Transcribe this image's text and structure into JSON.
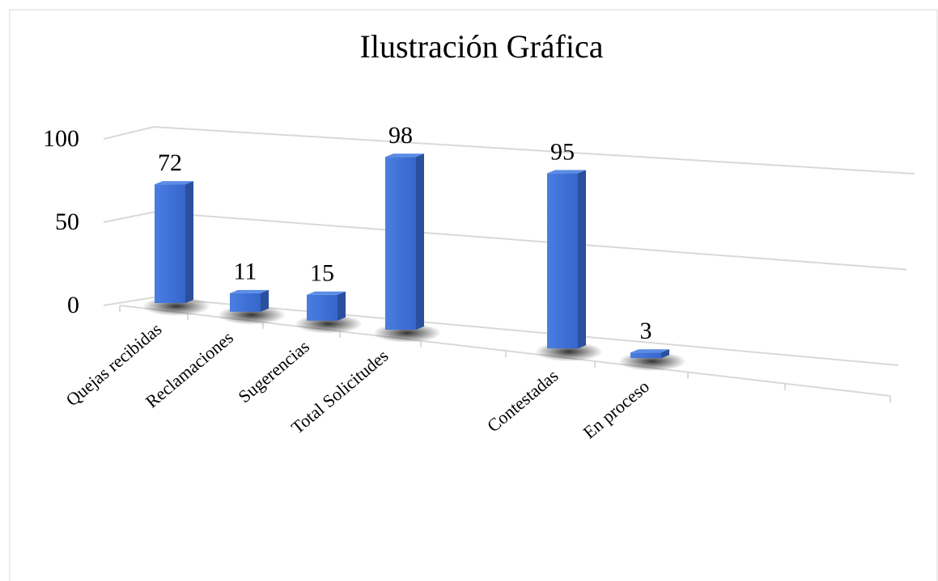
{
  "chart_data": {
    "type": "bar3d",
    "title": "Ilustración Gráfica",
    "categories": [
      "Quejas recibidas",
      "Reclamaciones",
      "Sugerencias",
      "Total Solicitudes",
      null,
      "Contestadas",
      "En proceso",
      null,
      null
    ],
    "values": [
      72,
      11,
      15,
      98,
      null,
      95,
      3,
      null,
      null
    ],
    "color": "#3a6fd8",
    "ylim": [
      0,
      100
    ],
    "yticks": [
      0,
      50,
      100
    ],
    "grid": true
  }
}
